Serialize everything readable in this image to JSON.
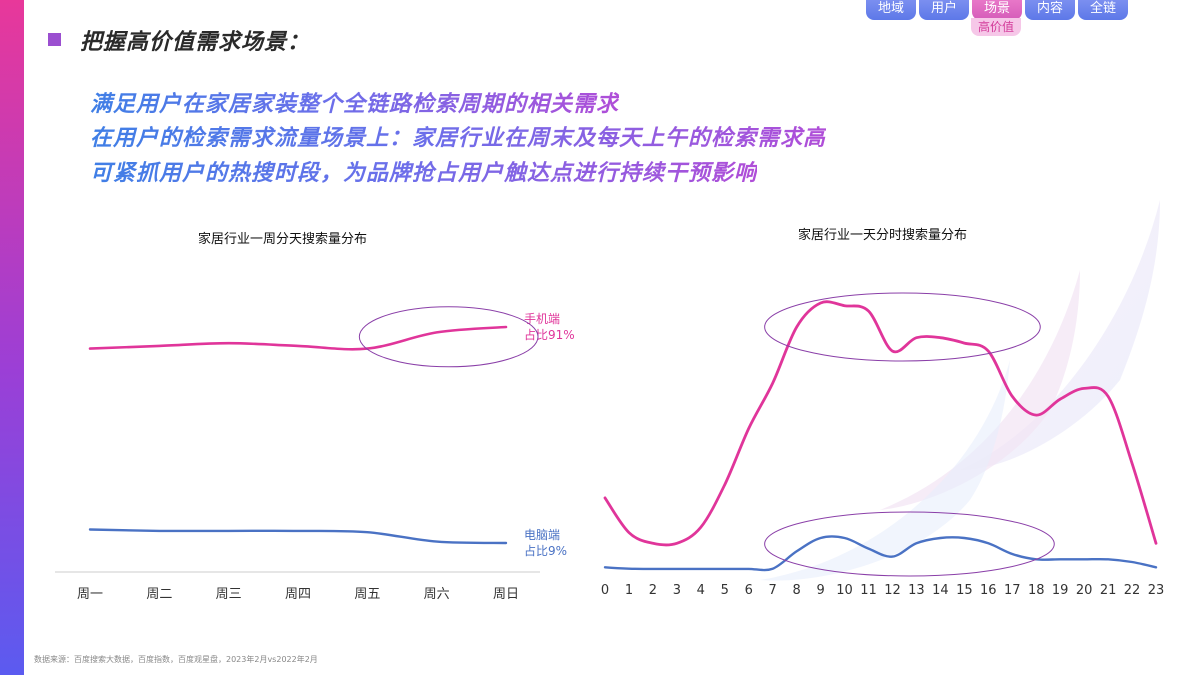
{
  "header": {
    "title": "把握高价值需求场景：",
    "nav_tabs": [
      "地域",
      "用户",
      "场景",
      "内容",
      "全链"
    ],
    "active_tab_sub": "高价值"
  },
  "headlines": [
    "满足用户在家居家装整个全链路检索周期的相关需求",
    "在用户的检索需求流量场景上：家居行业在周末及每天上午的检索需求高",
    "可紧抓用户的热搜时段，为品牌抢占用户触达点进行持续干预影响"
  ],
  "footer": {
    "source": "数据来源：百度搜索大数据，百度指数，百度观星盘，2023年2月vs2022年2月"
  },
  "colors": {
    "mobile": "#e0359a",
    "pc": "#4a72c4",
    "ellipse": "#8a3fa8"
  },
  "chart_data": [
    {
      "type": "line",
      "title": "家居行业一周分天搜索量分布",
      "categories": [
        "周一",
        "周二",
        "周三",
        "周四",
        "周五",
        "周六",
        "周日"
      ],
      "series": [
        {
          "label_line1": "手机端",
          "label_line2": "占比91%",
          "values": [
            0.82,
            0.83,
            0.84,
            0.83,
            0.82,
            0.88,
            0.9
          ]
        },
        {
          "label_line1": "电脑端",
          "label_line2": "占比9%",
          "values": [
            0.15,
            0.145,
            0.145,
            0.145,
            0.14,
            0.105,
            0.1
          ]
        }
      ],
      "ylim": [
        0,
        1
      ],
      "grid": false,
      "highlight_range": [
        "周五",
        "周日"
      ]
    },
    {
      "type": "line",
      "title": "家居行业一天分时搜索量分布",
      "categories": [
        "0",
        "1",
        "2",
        "3",
        "4",
        "5",
        "6",
        "7",
        "8",
        "9",
        "10",
        "11",
        "12",
        "13",
        "14",
        "15",
        "16",
        "17",
        "18",
        "19",
        "20",
        "21",
        "22",
        "23"
      ],
      "series": [
        {
          "values": [
            0.27,
            0.14,
            0.1,
            0.1,
            0.16,
            0.32,
            0.53,
            0.7,
            0.91,
            1.0,
            0.99,
            0.97,
            0.82,
            0.87,
            0.87,
            0.85,
            0.82,
            0.65,
            0.58,
            0.64,
            0.68,
            0.65,
            0.4,
            0.1
          ]
        },
        {
          "values": [
            0.01,
            0.005,
            0.004,
            0.004,
            0.004,
            0.004,
            0.004,
            0.005,
            0.07,
            0.12,
            0.12,
            0.08,
            0.05,
            0.1,
            0.12,
            0.12,
            0.1,
            0.06,
            0.04,
            0.04,
            0.04,
            0.04,
            0.03,
            0.01
          ]
        }
      ],
      "ylim": [
        0,
        1
      ],
      "grid": false,
      "highlight_ranges": [
        [
          "8",
          "17"
        ]
      ]
    }
  ]
}
